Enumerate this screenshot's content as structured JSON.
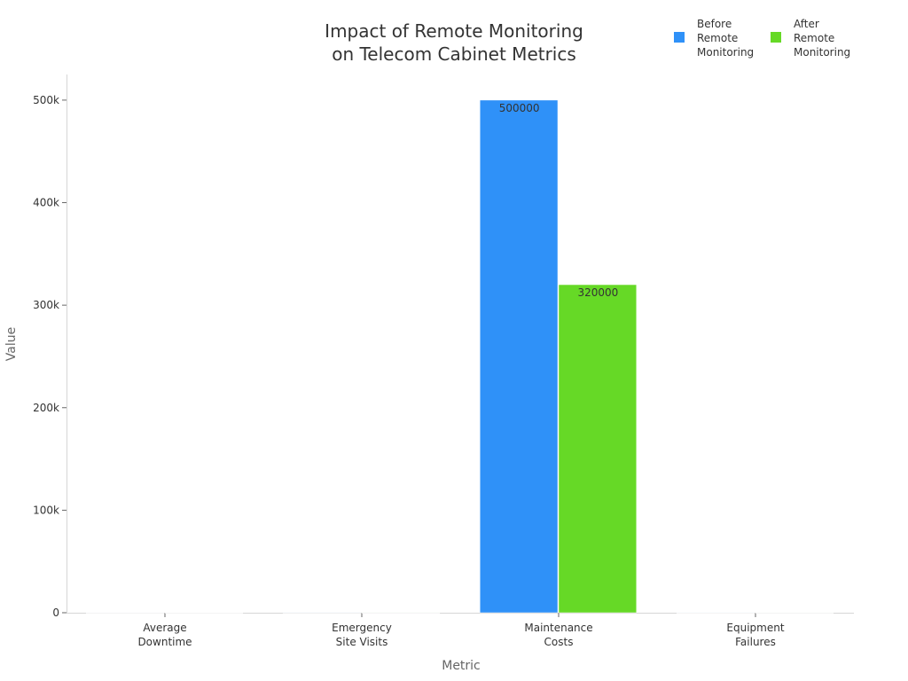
{
  "chart_data": {
    "type": "bar",
    "title": [
      "Impact of Remote Monitoring",
      "on Telecom Cabinet Metrics"
    ],
    "xlabel": "Metric",
    "ylabel": "Value",
    "categories": [
      [
        "Average",
        "Downtime"
      ],
      [
        "Emergency",
        "Site Visits"
      ],
      [
        "Maintenance",
        "Costs"
      ],
      [
        "Equipment",
        "Failures"
      ]
    ],
    "series": [
      {
        "name": [
          "Before",
          "Remote",
          "Monitoring"
        ],
        "color": "#2f91f8",
        "values": [
          6,
          120,
          500000,
          25
        ],
        "labels": [
          "",
          "",
          "500000",
          ""
        ]
      },
      {
        "name": [
          "After",
          "Remote",
          "Monitoring"
        ],
        "color": "#66d926",
        "values": [
          1.5,
          30,
          320000,
          8
        ],
        "labels": [
          "",
          "",
          "320000",
          ""
        ]
      }
    ],
    "ylim": [
      0,
      525000
    ],
    "yticks": [
      0,
      100000,
      200000,
      300000,
      400000,
      500000
    ],
    "ytick_labels": [
      "0",
      "100k",
      "200k",
      "300k",
      "400k",
      "500k"
    ],
    "grid": false,
    "legend_position": "top-right"
  }
}
